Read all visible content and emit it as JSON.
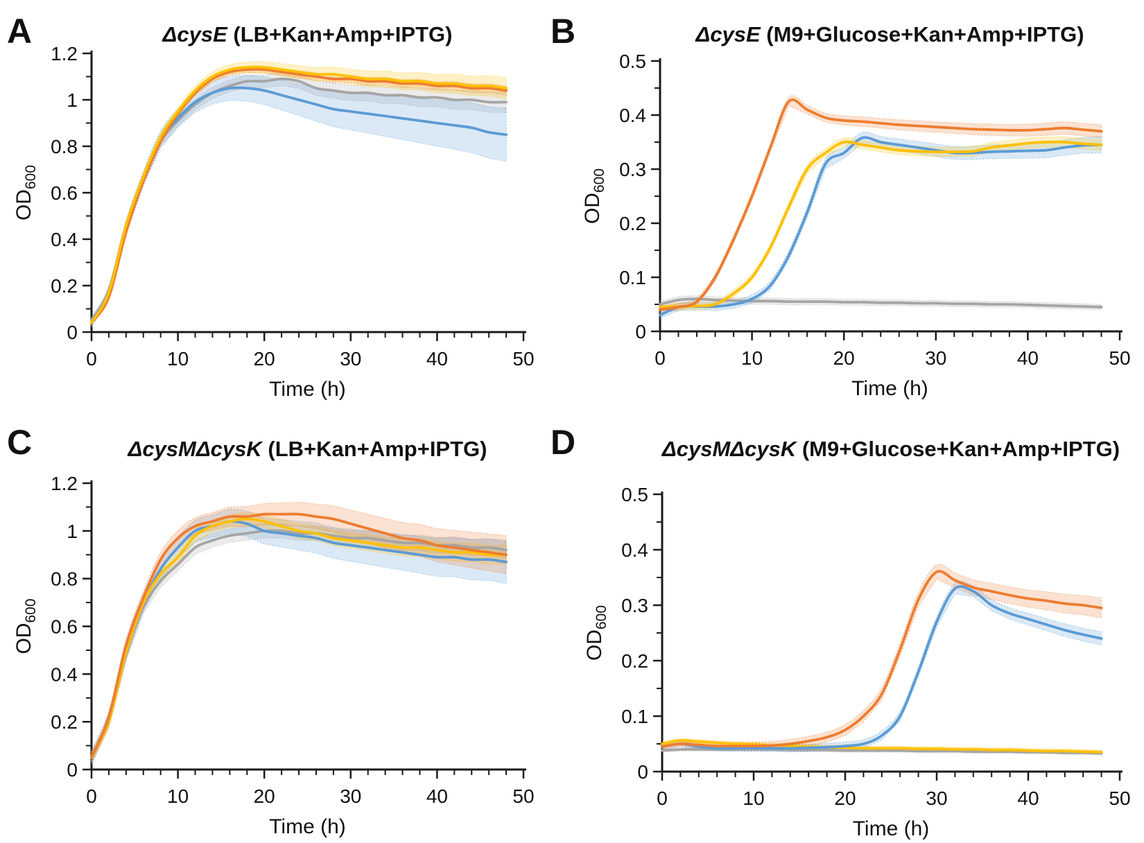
{
  "figure": {
    "background": "#ffffff",
    "axis_color": "#1a1a1a",
    "chart_data": [
      {
        "type": "line",
        "panel_label": "A",
        "title_italic": "ΔcysE",
        "title_rest": " (LB+Kan+Amp+IPTG)",
        "xlabel": "Time (h)",
        "ylabel_main": "OD",
        "ylabel_sub": "600",
        "xlim": [
          0,
          50
        ],
        "ylim": [
          0,
          1.2
        ],
        "x_major_ticks": [
          0,
          10,
          20,
          30,
          40,
          50
        ],
        "x_tick_labels": [
          "0",
          "10",
          "20",
          "30",
          "40",
          "50"
        ],
        "x_minor_step": 2,
        "y_major_ticks": [
          0,
          0.2,
          0.4,
          0.6,
          0.8,
          1.0,
          1.2
        ],
        "y_tick_labels": [
          "0",
          "0.2",
          "0.4",
          "0.6",
          "0.8",
          "1",
          "1.2"
        ],
        "y_minor_step": 0.1,
        "grid": false,
        "legend": "none",
        "x": [
          0,
          2,
          4,
          6,
          8,
          10,
          12,
          14,
          16,
          18,
          20,
          22,
          24,
          26,
          28,
          30,
          32,
          34,
          36,
          38,
          40,
          42,
          44,
          46,
          48
        ],
        "series": [
          {
            "name": "gray",
            "color": "#A5A5A5",
            "band": [
              0.015,
              0.045
            ],
            "values": [
              0.05,
              0.18,
              0.46,
              0.66,
              0.82,
              0.91,
              0.98,
              1.03,
              1.06,
              1.08,
              1.08,
              1.09,
              1.08,
              1.05,
              1.04,
              1.03,
              1.03,
              1.02,
              1.02,
              1.01,
              1.01,
              1.0,
              1.0,
              0.99,
              0.99
            ]
          },
          {
            "name": "blue",
            "color": "#5B9BD5",
            "band": [
              0.02,
              0.115
            ],
            "values": [
              0.04,
              0.17,
              0.45,
              0.66,
              0.83,
              0.92,
              0.99,
              1.03,
              1.05,
              1.05,
              1.04,
              1.02,
              1.0,
              0.98,
              0.96,
              0.95,
              0.94,
              0.93,
              0.92,
              0.91,
              0.9,
              0.89,
              0.88,
              0.86,
              0.85
            ]
          },
          {
            "name": "orange",
            "color": "#ED7D31",
            "band": [
              0.01,
              0.02
            ],
            "values": [
              0.04,
              0.15,
              0.43,
              0.65,
              0.82,
              0.94,
              1.03,
              1.09,
              1.12,
              1.13,
              1.13,
              1.12,
              1.11,
              1.1,
              1.09,
              1.09,
              1.08,
              1.08,
              1.07,
              1.07,
              1.06,
              1.06,
              1.05,
              1.05,
              1.04
            ]
          },
          {
            "name": "yellow",
            "color": "#FFC000",
            "band": [
              0.01,
              0.045
            ],
            "values": [
              0.04,
              0.17,
              0.46,
              0.67,
              0.84,
              0.95,
              1.04,
              1.1,
              1.13,
              1.14,
              1.14,
              1.13,
              1.12,
              1.11,
              1.11,
              1.1,
              1.09,
              1.09,
              1.08,
              1.08,
              1.07,
              1.07,
              1.06,
              1.06,
              1.05
            ]
          }
        ]
      },
      {
        "type": "line",
        "panel_label": "B",
        "title_italic": "ΔcysE",
        "title_rest": " (M9+Glucose+Kan+Amp+IPTG)",
        "xlabel": "Time (h)",
        "ylabel_main": "OD",
        "ylabel_sub": "600",
        "xlim": [
          0,
          50
        ],
        "ylim": [
          0,
          0.5
        ],
        "x_major_ticks": [
          0,
          10,
          20,
          30,
          40,
          50
        ],
        "x_tick_labels": [
          "0",
          "10",
          "20",
          "30",
          "40",
          "50"
        ],
        "x_minor_step": 2,
        "y_major_ticks": [
          0,
          0.1,
          0.2,
          0.3,
          0.4,
          0.5
        ],
        "y_tick_labels": [
          "0",
          "0.1",
          "0.2",
          "0.3",
          "0.4",
          "0.5"
        ],
        "y_minor_step": 0.05,
        "grid": false,
        "legend": "none",
        "x": [
          0,
          2,
          4,
          6,
          8,
          10,
          12,
          14,
          16,
          18,
          20,
          22,
          24,
          26,
          28,
          30,
          32,
          34,
          36,
          38,
          40,
          42,
          44,
          46,
          48
        ],
        "series": [
          {
            "name": "gray",
            "color": "#A5A5A5",
            "band": [
              0.006,
              0.005
            ],
            "values": [
              0.05,
              0.058,
              0.06,
              0.058,
              0.057,
              0.056,
              0.056,
              0.055,
              0.055,
              0.055,
              0.054,
              0.054,
              0.053,
              0.053,
              0.052,
              0.052,
              0.051,
              0.051,
              0.05,
              0.05,
              0.049,
              0.048,
              0.047,
              0.046,
              0.045
            ]
          },
          {
            "name": "blue",
            "color": "#5B9BD5",
            "band": [
              0.006,
              0.015
            ],
            "values": [
              0.03,
              0.045,
              0.046,
              0.046,
              0.05,
              0.06,
              0.085,
              0.14,
              0.22,
              0.31,
              0.33,
              0.358,
              0.35,
              0.345,
              0.34,
              0.335,
              0.33,
              0.33,
              0.332,
              0.333,
              0.334,
              0.335,
              0.34,
              0.344,
              0.345
            ]
          },
          {
            "name": "yellow",
            "color": "#FFC000",
            "band": [
              0.006,
              0.01
            ],
            "values": [
              0.045,
              0.046,
              0.047,
              0.05,
              0.07,
              0.1,
              0.155,
              0.23,
              0.3,
              0.33,
              0.35,
              0.345,
              0.34,
              0.335,
              0.333,
              0.332,
              0.332,
              0.333,
              0.34,
              0.344,
              0.348,
              0.35,
              0.35,
              0.347,
              0.345
            ]
          },
          {
            "name": "orange",
            "color": "#ED7D31",
            "band": [
              0.006,
              0.012
            ],
            "values": [
              0.04,
              0.045,
              0.055,
              0.1,
              0.17,
              0.25,
              0.34,
              0.425,
              0.41,
              0.395,
              0.39,
              0.388,
              0.385,
              0.382,
              0.38,
              0.378,
              0.376,
              0.374,
              0.373,
              0.372,
              0.372,
              0.374,
              0.376,
              0.373,
              0.37
            ]
          }
        ]
      },
      {
        "type": "line",
        "panel_label": "C",
        "title_italic": "ΔcysMΔcysK",
        "title_rest": " (LB+Kan+Amp+IPTG)",
        "xlabel": "Time (h)",
        "ylabel_main": "OD",
        "ylabel_sub": "600",
        "xlim": [
          0,
          50
        ],
        "ylim": [
          0,
          1.2
        ],
        "x_major_ticks": [
          0,
          10,
          20,
          30,
          40,
          50
        ],
        "x_tick_labels": [
          "0",
          "10",
          "20",
          "30",
          "40",
          "50"
        ],
        "x_minor_step": 2,
        "y_major_ticks": [
          0,
          0.2,
          0.4,
          0.6,
          0.8,
          1.0,
          1.2
        ],
        "y_tick_labels": [
          "0",
          "0.2",
          "0.4",
          "0.6",
          "0.8",
          "1",
          "1.2"
        ],
        "y_minor_step": 0.1,
        "grid": false,
        "legend": "none",
        "x": [
          0,
          2,
          4,
          6,
          8,
          10,
          12,
          14,
          16,
          18,
          20,
          22,
          24,
          26,
          28,
          30,
          32,
          34,
          36,
          38,
          40,
          42,
          44,
          46,
          48
        ],
        "series": [
          {
            "name": "gray",
            "color": "#A5A5A5",
            "band": [
              0.025,
              0.035
            ],
            "values": [
              0.05,
              0.2,
              0.48,
              0.68,
              0.79,
              0.86,
              0.93,
              0.96,
              0.98,
              0.99,
              1.0,
              1.0,
              0.99,
              0.99,
              0.98,
              0.97,
              0.97,
              0.96,
              0.95,
              0.95,
              0.94,
              0.94,
              0.93,
              0.93,
              0.92
            ]
          },
          {
            "name": "blue",
            "color": "#5B9BD5",
            "band": [
              0.03,
              0.09
            ],
            "values": [
              0.05,
              0.21,
              0.5,
              0.7,
              0.84,
              0.93,
              1.0,
              1.02,
              1.04,
              1.03,
              1.0,
              0.99,
              0.98,
              0.97,
              0.95,
              0.94,
              0.93,
              0.92,
              0.91,
              0.9,
              0.89,
              0.89,
              0.88,
              0.88,
              0.87
            ]
          },
          {
            "name": "yellow",
            "color": "#FFC000",
            "band": [
              0.02,
              0.04
            ],
            "values": [
              0.05,
              0.2,
              0.49,
              0.7,
              0.82,
              0.89,
              0.98,
              1.02,
              1.04,
              1.05,
              1.04,
              1.02,
              1.0,
              0.99,
              0.97,
              0.96,
              0.95,
              0.94,
              0.93,
              0.93,
              0.92,
              0.91,
              0.91,
              0.9,
              0.9
            ]
          },
          {
            "name": "orange",
            "color": "#ED7D31",
            "band": [
              0.02,
              0.08
            ],
            "values": [
              0.05,
              0.22,
              0.52,
              0.72,
              0.88,
              0.97,
              1.02,
              1.04,
              1.06,
              1.06,
              1.07,
              1.07,
              1.07,
              1.06,
              1.05,
              1.03,
              1.01,
              0.99,
              0.97,
              0.96,
              0.94,
              0.93,
              0.92,
              0.91,
              0.9
            ]
          }
        ]
      },
      {
        "type": "line",
        "panel_label": "D",
        "title_italic": "ΔcysMΔcysK",
        "title_rest": " (M9+Glucose+Kan+Amp+IPTG)",
        "xlabel": "Time (h)",
        "ylabel_main": "OD",
        "ylabel_sub": "600",
        "xlim": [
          0,
          50
        ],
        "ylim": [
          0,
          0.5
        ],
        "x_major_ticks": [
          0,
          10,
          20,
          30,
          40,
          50
        ],
        "x_tick_labels": [
          "0",
          "10",
          "20",
          "30",
          "40",
          "50"
        ],
        "x_minor_step": 2,
        "y_major_ticks": [
          0,
          0.1,
          0.2,
          0.3,
          0.4,
          0.5
        ],
        "y_tick_labels": [
          "0",
          "0.1",
          "0.2",
          "0.3",
          "0.4",
          "0.5"
        ],
        "y_minor_step": 0.05,
        "grid": false,
        "legend": "none",
        "x": [
          0,
          2,
          4,
          6,
          8,
          10,
          12,
          14,
          16,
          18,
          20,
          22,
          24,
          26,
          28,
          30,
          32,
          34,
          36,
          38,
          40,
          42,
          44,
          46,
          48
        ],
        "series": [
          {
            "name": "gray",
            "color": "#A5A5A5",
            "band": [
              0.003,
              0.003
            ],
            "values": [
              0.038,
              0.04,
              0.04,
              0.04,
              0.04,
              0.04,
              0.04,
              0.039,
              0.039,
              0.039,
              0.038,
              0.038,
              0.038,
              0.038,
              0.037,
              0.037,
              0.037,
              0.036,
              0.036,
              0.036,
              0.035,
              0.035,
              0.034,
              0.034,
              0.033
            ]
          },
          {
            "name": "yellow",
            "color": "#FFC000",
            "band": [
              0.004,
              0.004
            ],
            "values": [
              0.05,
              0.056,
              0.054,
              0.052,
              0.05,
              0.049,
              0.047,
              0.046,
              0.045,
              0.044,
              0.043,
              0.042,
              0.042,
              0.042,
              0.041,
              0.041,
              0.04,
              0.04,
              0.039,
              0.039,
              0.038,
              0.037,
              0.037,
              0.036,
              0.035
            ]
          },
          {
            "name": "blue",
            "color": "#5B9BD5",
            "band": [
              0.004,
              0.012
            ],
            "values": [
              0.045,
              0.05,
              0.045,
              0.042,
              0.042,
              0.042,
              0.042,
              0.042,
              0.043,
              0.044,
              0.046,
              0.05,
              0.065,
              0.1,
              0.18,
              0.27,
              0.33,
              0.325,
              0.3,
              0.285,
              0.275,
              0.265,
              0.255,
              0.247,
              0.24
            ]
          },
          {
            "name": "orange",
            "color": "#ED7D31",
            "band": [
              0.004,
              0.018
            ],
            "values": [
              0.045,
              0.05,
              0.048,
              0.046,
              0.046,
              0.046,
              0.047,
              0.05,
              0.055,
              0.062,
              0.075,
              0.1,
              0.14,
              0.22,
              0.31,
              0.36,
              0.345,
              0.332,
              0.325,
              0.318,
              0.312,
              0.308,
              0.303,
              0.3,
              0.295
            ]
          }
        ]
      }
    ]
  }
}
